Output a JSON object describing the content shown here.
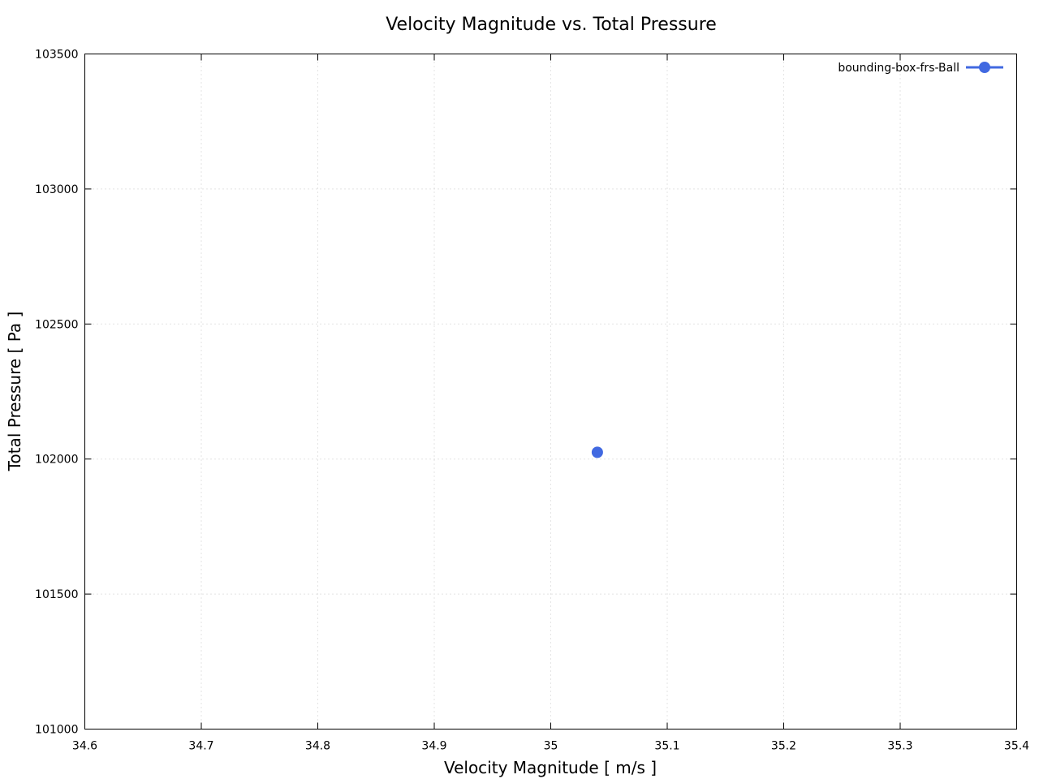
{
  "chart_data": {
    "type": "scatter",
    "title": "Velocity Magnitude vs. Total Pressure",
    "xlabel": "Velocity Magnitude [ m/s ]",
    "ylabel": "Total Pressure [ Pa ]",
    "xlim": [
      34.6,
      35.4
    ],
    "ylim": [
      101000,
      103500
    ],
    "x_ticks": [
      "34.6",
      "34.7",
      "34.8",
      "34.9",
      "35",
      "35.1",
      "35.2",
      "35.3",
      "35.4"
    ],
    "y_ticks": [
      "101000",
      "101500",
      "102000",
      "102500",
      "103000",
      "103500"
    ],
    "grid": true,
    "legend_position": "top-right",
    "series": [
      {
        "name": "bounding-box-frs-Ball",
        "color": "#4169e1",
        "marker": "circle",
        "points": [
          {
            "x": 35.04,
            "y": 102025
          }
        ]
      }
    ]
  }
}
